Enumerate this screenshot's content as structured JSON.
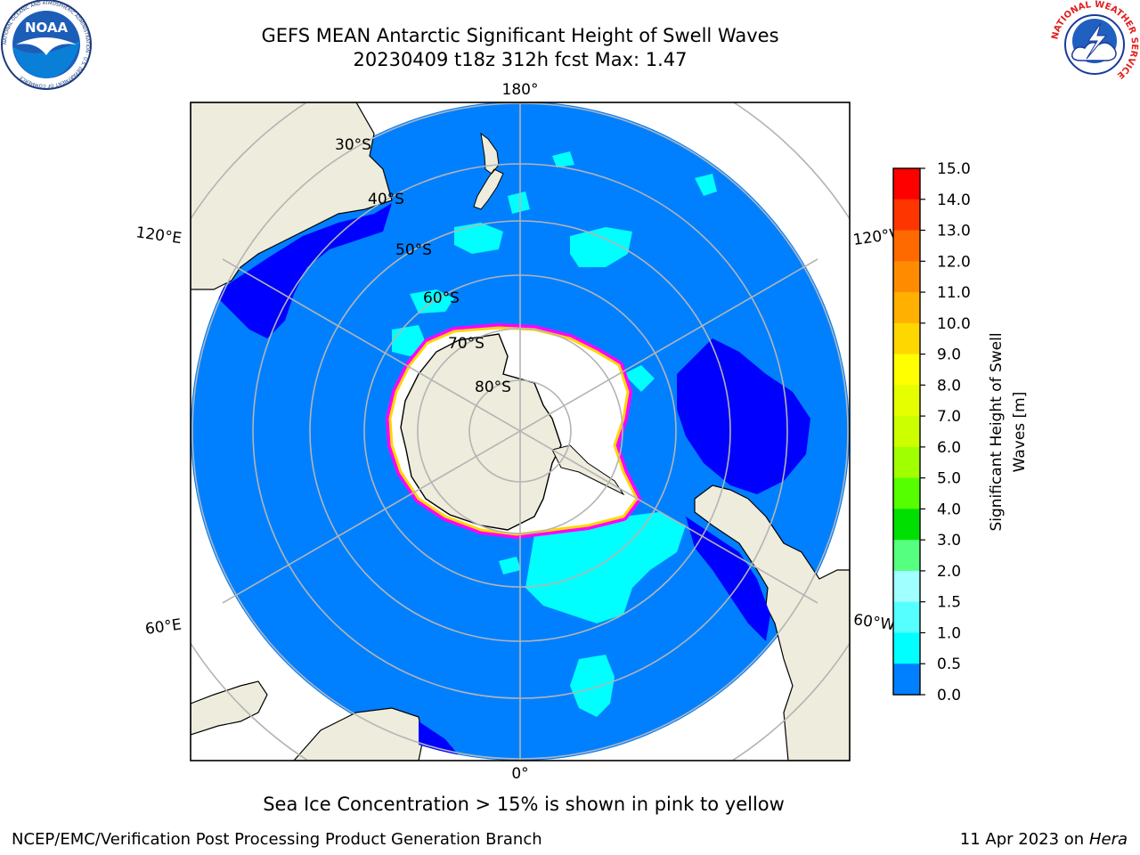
{
  "header": {
    "title_line1": "GEFS MEAN Antarctic Significant Height of Swell Waves",
    "title_line2": "20230409 t18z 312h fcst   Max: 1.47"
  },
  "logos": {
    "noaa": {
      "text": "NOAA",
      "ring_text": "NATIONAL OCEANIC AND ATMOSPHERIC ADMINISTRATION · U.S. DEPARTMENT OF COMMERCE"
    },
    "nws": {
      "ring_text": "NATIONAL WEATHER SERVICE"
    }
  },
  "map": {
    "projection": "south-polar-stereographic",
    "lon_labels": {
      "top": "180°",
      "bottom": "0°",
      "upper_left": "120°E",
      "upper_right": "120°W",
      "lower_left": "60°E",
      "lower_right": "60°W"
    },
    "lat_labels": [
      "30°S",
      "40°S",
      "50°S",
      "60°S",
      "70°S",
      "80°S"
    ],
    "colors": {
      "ocean": "#0080ff",
      "land": "#eeecdc",
      "ice_free": "#ffffff",
      "low_band": "#0000ff",
      "mid_band": "#00ffff",
      "ice_edge": "#ff00ff",
      "graticule": "#b4b4b4"
    }
  },
  "colorbar": {
    "label_line1": "Significant Height of Swell",
    "label_line2": "Waves [m]",
    "ticks": [
      "15.0",
      "14.0",
      "13.0",
      "12.0",
      "11.0",
      "10.0",
      "9.0",
      "8.0",
      "7.0",
      "6.0",
      "5.0",
      "4.0",
      "3.0",
      "2.0",
      "1.5",
      "1.0",
      "0.5",
      "0.0"
    ],
    "colors": [
      "#ff0000",
      "#ff3500",
      "#ff6a00",
      "#ff8c00",
      "#ffb000",
      "#ffd700",
      "#ffff00",
      "#e6ff00",
      "#ccff00",
      "#a0ff00",
      "#55ff00",
      "#00e000",
      "#55ff80",
      "#a0ffff",
      "#55ffff",
      "#00ffff",
      "#0080ff",
      "#0000ff"
    ]
  },
  "footer": {
    "note": "Sea Ice Concentration > 15% is shown in pink to yellow",
    "credit": "NCEP/EMC/Verification Post Processing Product Generation Branch",
    "date": "11 Apr 2023 on ",
    "machine": "Hera"
  }
}
